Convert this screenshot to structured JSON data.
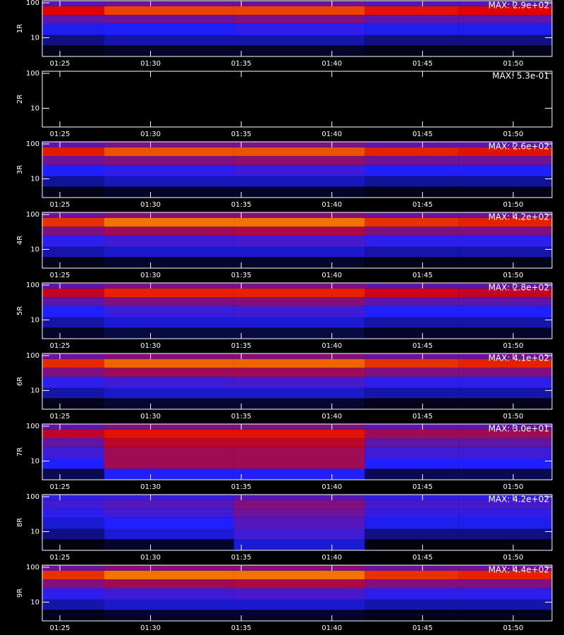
{
  "chart_data": [
    {
      "type": "heatmap",
      "ylabel": "1R",
      "annotation": "MAX: 2.9e+02",
      "log_y": true,
      "xlim": [
        24.03,
        52.14
      ],
      "ylim": [
        2.9,
        115
      ],
      "xticks": [
        {
          "value": 25,
          "label": "01:25"
        },
        {
          "value": 30,
          "label": "01:30"
        },
        {
          "value": 35,
          "label": "01:35"
        },
        {
          "value": 40,
          "label": "01:40"
        },
        {
          "value": 45,
          "label": "01:45"
        },
        {
          "value": 50,
          "label": "01:50"
        }
      ],
      "yticks": [
        10,
        100
      ],
      "x_edges": [
        24.03,
        27.45,
        34.6,
        41.8,
        47,
        52.14
      ],
      "y_edges": [
        2.9,
        6,
        12,
        25,
        45,
        80,
        115
      ],
      "z": [
        [
          0.03,
          0.05,
          0.05,
          0.03,
          0.03
        ],
        [
          0.15,
          0.2,
          0.2,
          0.15,
          0.15
        ],
        [
          0.28,
          0.3,
          0.32,
          0.28,
          0.28
        ],
        [
          0.4,
          0.42,
          0.45,
          0.4,
          0.4
        ],
        [
          0.6,
          0.68,
          0.68,
          0.62,
          0.6
        ],
        [
          0.38,
          0.42,
          0.42,
          0.38,
          0.38
        ]
      ],
      "colormap": [
        [
          0,
          "#000000"
        ],
        [
          0.3,
          "#2020ff"
        ],
        [
          0.6,
          "#e00000"
        ],
        [
          0.85,
          "#ffd000"
        ],
        [
          1,
          "#ffffff"
        ]
      ]
    },
    {
      "type": "heatmap",
      "ylabel": "2R",
      "annotation": "MAX: 5.3e-01",
      "log_y": true,
      "xlim": [
        24.03,
        52.14
      ],
      "ylim": [
        2.9,
        115
      ],
      "xticks": [
        {
          "value": 25,
          "label": "01:25"
        },
        {
          "value": 30,
          "label": "01:30"
        },
        {
          "value": 35,
          "label": "01:35"
        },
        {
          "value": 40,
          "label": "01:40"
        },
        {
          "value": 45,
          "label": "01:45"
        },
        {
          "value": 50,
          "label": "01:50"
        }
      ],
      "yticks": [
        10,
        100
      ],
      "x_edges": [
        24.03,
        27.45,
        34.6,
        41.8,
        47,
        52.14
      ],
      "y_edges": [
        2.9,
        6,
        12,
        25,
        45,
        80,
        115
      ],
      "z": [
        [
          0,
          0,
          0,
          0,
          0
        ],
        [
          0,
          0,
          0,
          0,
          0
        ],
        [
          0,
          0,
          0,
          0,
          0
        ],
        [
          0,
          0,
          0,
          0,
          0
        ],
        [
          0,
          0,
          0,
          0,
          0
        ],
        [
          0,
          0,
          0,
          0,
          0
        ]
      ],
      "colormap": [
        [
          0,
          "#000000"
        ],
        [
          0.3,
          "#2020ff"
        ],
        [
          0.6,
          "#e00000"
        ],
        [
          0.85,
          "#ffd000"
        ],
        [
          1,
          "#ffffff"
        ]
      ]
    },
    {
      "type": "heatmap",
      "ylabel": "3R",
      "annotation": "MAX: 2.6e+02",
      "log_y": true,
      "xlim": [
        24.03,
        52.14
      ],
      "ylim": [
        2.9,
        115
      ],
      "xticks": [
        {
          "value": 25,
          "label": "01:25"
        },
        {
          "value": 30,
          "label": "01:30"
        },
        {
          "value": 35,
          "label": "01:35"
        },
        {
          "value": 40,
          "label": "01:40"
        },
        {
          "value": 45,
          "label": "01:45"
        },
        {
          "value": 50,
          "label": "01:50"
        }
      ],
      "yticks": [
        10,
        100
      ],
      "x_edges": [
        24.03,
        27.45,
        34.6,
        41.8,
        47,
        52.14
      ],
      "y_edges": [
        2.9,
        6,
        12,
        25,
        45,
        80,
        115
      ],
      "z": [
        [
          0.03,
          0.05,
          0.05,
          0.03,
          0.03
        ],
        [
          0.18,
          0.22,
          0.22,
          0.18,
          0.18
        ],
        [
          0.3,
          0.32,
          0.34,
          0.3,
          0.3
        ],
        [
          0.42,
          0.45,
          0.47,
          0.42,
          0.42
        ],
        [
          0.63,
          0.7,
          0.7,
          0.64,
          0.62
        ],
        [
          0.4,
          0.44,
          0.44,
          0.4,
          0.4
        ]
      ],
      "colormap": [
        [
          0,
          "#000000"
        ],
        [
          0.3,
          "#2020ff"
        ],
        [
          0.6,
          "#e00000"
        ],
        [
          0.85,
          "#ffd000"
        ],
        [
          1,
          "#ffffff"
        ]
      ]
    },
    {
      "type": "heatmap",
      "ylabel": "4R",
      "annotation": "MAX: 4.2e+02",
      "log_y": true,
      "xlim": [
        24.03,
        52.14
      ],
      "ylim": [
        2.9,
        115
      ],
      "xticks": [
        {
          "value": 25,
          "label": "01:25"
        },
        {
          "value": 30,
          "label": "01:30"
        },
        {
          "value": 35,
          "label": "01:35"
        },
        {
          "value": 40,
          "label": "01:40"
        },
        {
          "value": 45,
          "label": "01:45"
        },
        {
          "value": 50,
          "label": "01:50"
        }
      ],
      "yticks": [
        10,
        100
      ],
      "x_edges": [
        24.03,
        27.45,
        34.6,
        41.8,
        47,
        52.14
      ],
      "y_edges": [
        2.9,
        6,
        12,
        25,
        45,
        80,
        115
      ],
      "z": [
        [
          0.03,
          0.05,
          0.05,
          0.03,
          0.03
        ],
        [
          0.2,
          0.24,
          0.24,
          0.2,
          0.2
        ],
        [
          0.32,
          0.35,
          0.36,
          0.32,
          0.32
        ],
        [
          0.45,
          0.5,
          0.52,
          0.45,
          0.45
        ],
        [
          0.66,
          0.74,
          0.74,
          0.66,
          0.64
        ],
        [
          0.42,
          0.46,
          0.46,
          0.42,
          0.42
        ]
      ],
      "colormap": [
        [
          0,
          "#000000"
        ],
        [
          0.3,
          "#2020ff"
        ],
        [
          0.6,
          "#e00000"
        ],
        [
          0.85,
          "#ffd000"
        ],
        [
          1,
          "#ffffff"
        ]
      ]
    },
    {
      "type": "heatmap",
      "ylabel": "5R",
      "annotation": "MAX: 2.8e+02",
      "log_y": true,
      "xlim": [
        24.03,
        52.14
      ],
      "ylim": [
        2.9,
        115
      ],
      "xticks": [
        {
          "value": 25,
          "label": "01:25"
        },
        {
          "value": 30,
          "label": "01:30"
        },
        {
          "value": 35,
          "label": "01:35"
        },
        {
          "value": 40,
          "label": "01:40"
        },
        {
          "value": 45,
          "label": "01:45"
        },
        {
          "value": 50,
          "label": "01:50"
        }
      ],
      "yticks": [
        10,
        100
      ],
      "x_edges": [
        24.03,
        27.45,
        34.6,
        41.8,
        47,
        52.14
      ],
      "y_edges": [
        2.9,
        6,
        12,
        25,
        45,
        80,
        115
      ],
      "z": [
        [
          0.05,
          0.08,
          0.08,
          0.05,
          0.05
        ],
        [
          0.2,
          0.25,
          0.25,
          0.2,
          0.2
        ],
        [
          0.3,
          0.34,
          0.35,
          0.3,
          0.3
        ],
        [
          0.4,
          0.45,
          0.46,
          0.4,
          0.4
        ],
        [
          0.55,
          0.64,
          0.64,
          0.57,
          0.55
        ],
        [
          0.4,
          0.44,
          0.44,
          0.4,
          0.4
        ]
      ],
      "colormap": [
        [
          0,
          "#000000"
        ],
        [
          0.3,
          "#2020ff"
        ],
        [
          0.6,
          "#e00000"
        ],
        [
          0.85,
          "#ffd000"
        ],
        [
          1,
          "#ffffff"
        ]
      ]
    },
    {
      "type": "heatmap",
      "ylabel": "6R",
      "annotation": "MAX: 4.1e+02",
      "log_y": true,
      "xlim": [
        24.03,
        52.14
      ],
      "ylim": [
        2.9,
        115
      ],
      "xticks": [
        {
          "value": 25,
          "label": "01:25"
        },
        {
          "value": 30,
          "label": "01:30"
        },
        {
          "value": 35,
          "label": "01:35"
        },
        {
          "value": 40,
          "label": "01:40"
        },
        {
          "value": 45,
          "label": "01:45"
        },
        {
          "value": 50,
          "label": "01:50"
        }
      ],
      "yticks": [
        10,
        100
      ],
      "x_edges": [
        24.03,
        27.45,
        34.6,
        41.8,
        47,
        52.14
      ],
      "y_edges": [
        2.9,
        6,
        12,
        25,
        45,
        80,
        115
      ],
      "z": [
        [
          0.03,
          0.06,
          0.06,
          0.03,
          0.03
        ],
        [
          0.2,
          0.24,
          0.24,
          0.2,
          0.2
        ],
        [
          0.32,
          0.35,
          0.36,
          0.32,
          0.32
        ],
        [
          0.45,
          0.5,
          0.5,
          0.45,
          0.45
        ],
        [
          0.65,
          0.72,
          0.72,
          0.66,
          0.64
        ],
        [
          0.42,
          0.46,
          0.46,
          0.42,
          0.42
        ]
      ],
      "colormap": [
        [
          0,
          "#000000"
        ],
        [
          0.3,
          "#2020ff"
        ],
        [
          0.6,
          "#e00000"
        ],
        [
          0.85,
          "#ffd000"
        ],
        [
          1,
          "#ffffff"
        ]
      ]
    },
    {
      "type": "heatmap",
      "ylabel": "7R",
      "annotation": "MAX: 3.0e+01",
      "log_y": true,
      "xlim": [
        24.03,
        52.14
      ],
      "ylim": [
        2.9,
        115
      ],
      "xticks": [
        {
          "value": 25,
          "label": "01:25"
        },
        {
          "value": 30,
          "label": "01:30"
        },
        {
          "value": 35,
          "label": "01:35"
        },
        {
          "value": 40,
          "label": "01:40"
        },
        {
          "value": 45,
          "label": "01:45"
        },
        {
          "value": 50,
          "label": "01:50"
        }
      ],
      "yticks": [
        10,
        100
      ],
      "x_edges": [
        24.03,
        27.45,
        34.6,
        41.8,
        47,
        52.14
      ],
      "y_edges": [
        2.9,
        6,
        12,
        25,
        45,
        80,
        115
      ],
      "z": [
        [
          0.1,
          0.3,
          0.3,
          0.1,
          0.1
        ],
        [
          0.3,
          0.5,
          0.5,
          0.3,
          0.3
        ],
        [
          0.35,
          0.5,
          0.5,
          0.35,
          0.35
        ],
        [
          0.4,
          0.55,
          0.55,
          0.4,
          0.4
        ],
        [
          0.55,
          0.62,
          0.62,
          0.5,
          0.5
        ],
        [
          0.4,
          0.45,
          0.45,
          0.4,
          0.4
        ]
      ],
      "colormap": [
        [
          0,
          "#000000"
        ],
        [
          0.3,
          "#2020ff"
        ],
        [
          0.6,
          "#e00000"
        ],
        [
          0.85,
          "#ffd000"
        ],
        [
          1,
          "#ffffff"
        ]
      ]
    },
    {
      "type": "heatmap",
      "ylabel": "8R",
      "annotation": "MAX: 4.2e+02",
      "log_y": true,
      "xlim": [
        24.03,
        52.14
      ],
      "ylim": [
        2.9,
        115
      ],
      "xticks": [
        {
          "value": 25,
          "label": "01:25"
        },
        {
          "value": 30,
          "label": "01:30"
        },
        {
          "value": 35,
          "label": "01:35"
        },
        {
          "value": 40,
          "label": "01:40"
        },
        {
          "value": 45,
          "label": "01:45"
        },
        {
          "value": 50,
          "label": "01:50"
        }
      ],
      "yticks": [
        10,
        100
      ],
      "x_edges": [
        24.03,
        27.45,
        34.6,
        41.8,
        47,
        52.14
      ],
      "y_edges": [
        2.9,
        6,
        12,
        25,
        45,
        80,
        115
      ],
      "z": [
        [
          0.02,
          0.05,
          0.25,
          0.02,
          0.02
        ],
        [
          0.15,
          0.25,
          0.35,
          0.15,
          0.15
        ],
        [
          0.25,
          0.3,
          0.38,
          0.28,
          0.28
        ],
        [
          0.32,
          0.35,
          0.42,
          0.33,
          0.33
        ],
        [
          0.35,
          0.38,
          0.45,
          0.36,
          0.36
        ],
        [
          0.33,
          0.34,
          0.38,
          0.33,
          0.33
        ]
      ],
      "colormap": [
        [
          0,
          "#000000"
        ],
        [
          0.3,
          "#2020ff"
        ],
        [
          0.6,
          "#e00000"
        ],
        [
          0.85,
          "#ffd000"
        ],
        [
          1,
          "#ffffff"
        ]
      ]
    },
    {
      "type": "heatmap",
      "ylabel": "9R",
      "annotation": "MAX: 4.4e+02",
      "log_y": true,
      "xlim": [
        24.03,
        52.14
      ],
      "ylim": [
        2.9,
        115
      ],
      "xticks": [
        {
          "value": 25,
          "label": "01:25"
        },
        {
          "value": 30,
          "label": "01:30"
        },
        {
          "value": 35,
          "label": "01:35"
        },
        {
          "value": 40,
          "label": "01:40"
        },
        {
          "value": 45,
          "label": "01:45"
        },
        {
          "value": 50,
          "label": "01:50"
        }
      ],
      "yticks": [
        10,
        100
      ],
      "x_edges": [
        24.03,
        27.45,
        34.6,
        41.8,
        47,
        52.14
      ],
      "y_edges": [
        2.9,
        6,
        12,
        25,
        45,
        80,
        115
      ],
      "z": [
        [
          0.03,
          0.05,
          0.05,
          0.03,
          0.03
        ],
        [
          0.2,
          0.24,
          0.24,
          0.2,
          0.2
        ],
        [
          0.32,
          0.35,
          0.36,
          0.32,
          0.32
        ],
        [
          0.45,
          0.5,
          0.52,
          0.45,
          0.45
        ],
        [
          0.66,
          0.74,
          0.74,
          0.66,
          0.64
        ],
        [
          0.42,
          0.46,
          0.46,
          0.42,
          0.42
        ]
      ],
      "colormap": [
        [
          0,
          "#000000"
        ],
        [
          0.3,
          "#2020ff"
        ],
        [
          0.6,
          "#e00000"
        ],
        [
          0.85,
          "#ffd000"
        ],
        [
          1,
          "#ffffff"
        ]
      ]
    }
  ]
}
